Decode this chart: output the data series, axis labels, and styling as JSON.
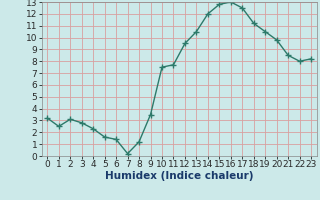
{
  "x": [
    0,
    1,
    2,
    3,
    4,
    5,
    6,
    7,
    8,
    9,
    10,
    11,
    12,
    13,
    14,
    15,
    16,
    17,
    18,
    19,
    20,
    21,
    22,
    23
  ],
  "y": [
    3.2,
    2.5,
    3.1,
    2.8,
    2.3,
    1.6,
    1.4,
    0.2,
    1.2,
    3.5,
    7.5,
    7.7,
    9.5,
    10.5,
    12.0,
    12.8,
    13.0,
    12.5,
    11.2,
    10.5,
    9.8,
    8.5,
    8.0,
    8.2
  ],
  "line_color": "#2d7a6a",
  "marker": "+",
  "bg_color": "#cce9e9",
  "grid_color": "#d9a0a0",
  "xlabel": "Humidex (Indice chaleur)",
  "xlabel_fontsize": 7.5,
  "xlabel_color": "#1a3a6a",
  "tick_label_color": "#2a2a2a",
  "xlim": [
    -0.5,
    23.5
  ],
  "ylim": [
    0,
    13
  ],
  "yticks": [
    0,
    1,
    2,
    3,
    4,
    5,
    6,
    7,
    8,
    9,
    10,
    11,
    12,
    13
  ],
  "xticks": [
    0,
    1,
    2,
    3,
    4,
    5,
    6,
    7,
    8,
    9,
    10,
    11,
    12,
    13,
    14,
    15,
    16,
    17,
    18,
    19,
    20,
    21,
    22,
    23
  ],
  "linewidth": 1.0,
  "markersize": 4,
  "tick_fontsize": 6.5
}
